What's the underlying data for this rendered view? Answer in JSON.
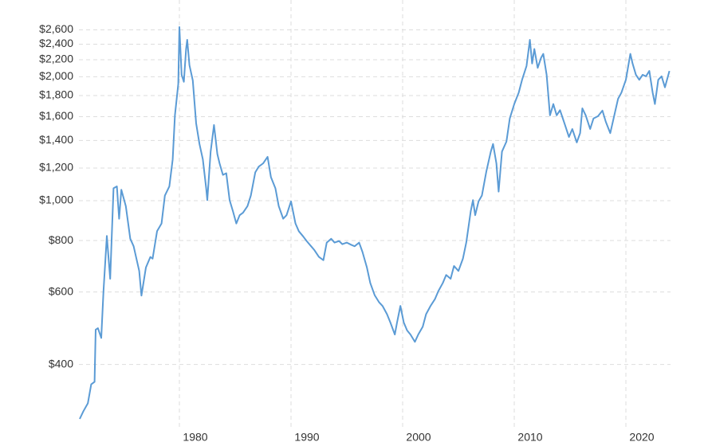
{
  "chart_data": {
    "type": "line",
    "yscale": "log",
    "grid": true,
    "color": "#5b9bd5",
    "xlim": [
      1971,
      2024
    ],
    "xticks": [
      1980,
      1990,
      2000,
      2010,
      2020
    ],
    "ylim": [
      295,
      2700
    ],
    "yticks": [
      {
        "value": 400,
        "label": "$400"
      },
      {
        "value": 600,
        "label": "$600"
      },
      {
        "value": 800,
        "label": "$800"
      },
      {
        "value": 1000,
        "label": "$1,000"
      },
      {
        "value": 1200,
        "label": "$1,200"
      },
      {
        "value": 1400,
        "label": "$1,400"
      },
      {
        "value": 1600,
        "label": "$1,600"
      },
      {
        "value": 1800,
        "label": "$1,800"
      },
      {
        "value": 2000,
        "label": "$2,000"
      },
      {
        "value": 2200,
        "label": "$2,200"
      },
      {
        "value": 2400,
        "label": "$2,400"
      },
      {
        "value": 2600,
        "label": "$2,600"
      }
    ],
    "x": [
      1971.07,
      1971.4,
      1971.8,
      1972.1,
      1972.4,
      1972.5,
      1972.7,
      1973.0,
      1973.2,
      1973.5,
      1973.8,
      1974.1,
      1974.4,
      1974.6,
      1974.8,
      1975.2,
      1975.6,
      1975.9,
      1976.4,
      1976.6,
      1977.0,
      1977.4,
      1977.6,
      1978.0,
      1978.4,
      1978.7,
      1979.1,
      1979.4,
      1979.6,
      1979.9,
      1980.0,
      1980.2,
      1980.4,
      1980.6,
      1980.7,
      1980.9,
      1981.2,
      1981.5,
      1981.8,
      1982.1,
      1982.4,
      1982.5,
      1982.8,
      1983.1,
      1983.4,
      1983.6,
      1983.9,
      1984.2,
      1984.5,
      1984.8,
      1985.1,
      1985.4,
      1985.7,
      1986.1,
      1986.4,
      1986.8,
      1987.1,
      1987.5,
      1987.9,
      1988.2,
      1988.6,
      1988.9,
      1989.3,
      1989.6,
      1990.0,
      1990.4,
      1990.7,
      1991.1,
      1991.4,
      1991.8,
      1992.1,
      1992.5,
      1992.9,
      1993.2,
      1993.6,
      1993.9,
      1994.3,
      1994.6,
      1995.0,
      1995.4,
      1995.7,
      1996.1,
      1996.4,
      1996.8,
      1997.1,
      1997.5,
      1997.9,
      1998.2,
      1998.6,
      1998.9,
      1999.3,
      1999.5,
      1999.8,
      2000.1,
      2000.4,
      2000.7,
      2001.1,
      2001.4,
      2001.8,
      2002.1,
      2002.5,
      2002.9,
      2003.2,
      2003.6,
      2003.9,
      2004.3,
      2004.6,
      2005.0,
      2005.4,
      2005.7,
      2006.1,
      2006.3,
      2006.5,
      2006.8,
      2007.1,
      2007.5,
      2007.9,
      2008.1,
      2008.4,
      2008.6,
      2008.9,
      2009.3,
      2009.6,
      2010.0,
      2010.4,
      2010.7,
      2011.1,
      2011.4,
      2011.6,
      2011.8,
      2012.1,
      2012.4,
      2012.6,
      2012.9,
      2013.2,
      2013.5,
      2013.8,
      2014.1,
      2014.5,
      2014.9,
      2015.2,
      2015.6,
      2015.9,
      2016.1,
      2016.4,
      2016.8,
      2017.1,
      2017.5,
      2017.9,
      2018.2,
      2018.6,
      2018.9,
      2019.3,
      2019.6,
      2020.0,
      2020.4,
      2020.6,
      2020.9,
      2021.2,
      2021.5,
      2021.8,
      2022.1,
      2022.4,
      2022.6,
      2022.9,
      2023.2,
      2023.5,
      2023.9
    ],
    "values": [
      295,
      308,
      322,
      358,
      363,
      486,
      490,
      464,
      603,
      821,
      646,
      1072,
      1083,
      904,
      1063,
      970,
      808,
      775,
      675,
      588,
      688,
      730,
      723,
      843,
      880,
      1029,
      1083,
      1260,
      1612,
      1922,
      2641,
      2022,
      1944,
      2336,
      2459,
      2134,
      1959,
      1541,
      1373,
      1260,
      1072,
      1003,
      1316,
      1527,
      1298,
      1232,
      1155,
      1166,
      1003,
      942,
      880,
      922,
      935,
      970,
      1029,
      1172,
      1209,
      1232,
      1278,
      1141,
      1072,
      970,
      904,
      922,
      996,
      880,
      843,
      818,
      798,
      775,
      758,
      730,
      717,
      791,
      808,
      791,
      798,
      784,
      791,
      781,
      775,
      791,
      751,
      688,
      631,
      589,
      566,
      555,
      530,
      506,
      473,
      506,
      555,
      506,
      484,
      473,
      454,
      473,
      494,
      530,
      555,
      577,
      603,
      631,
      660,
      646,
      694,
      675,
      723,
      791,
      942,
      1003,
      922,
      996,
      1029,
      1178,
      1316,
      1373,
      1232,
      1052,
      1316,
      1392,
      1584,
      1717,
      1830,
      1966,
      2125,
      2459,
      2154,
      2336,
      2102,
      2223,
      2273,
      2022,
      1612,
      1717,
      1612,
      1659,
      1541,
      1428,
      1493,
      1385,
      1459,
      1676,
      1612,
      1493,
      1584,
      1604,
      1655,
      1555,
      1459,
      1584,
      1768,
      1830,
      1966,
      2273,
      2154,
      2022,
      1966,
      2022,
      2005,
      2066,
      1830,
      1717,
      1966,
      2005,
      1885,
      2066
    ]
  }
}
